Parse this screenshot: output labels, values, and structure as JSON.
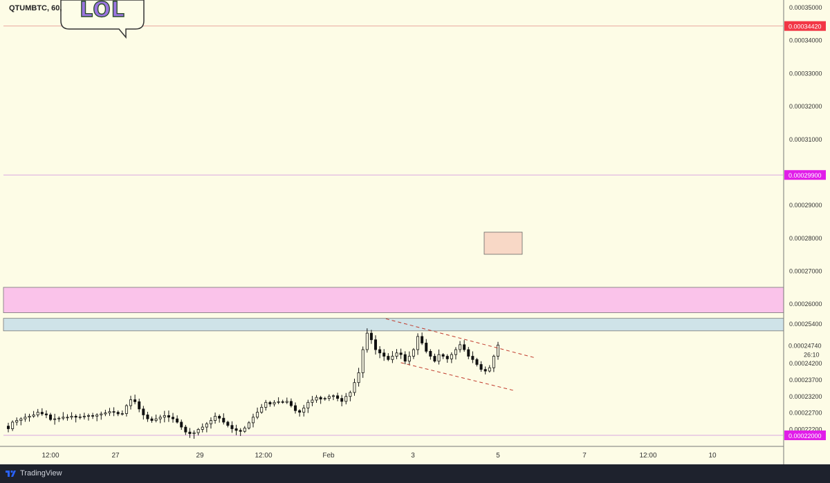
{
  "header": {
    "symbol": "QTUMBTC, 60,"
  },
  "sticker": {
    "text": "LOL"
  },
  "footer": {
    "brand": "TradingView"
  },
  "colors": {
    "background": "#fdfce6",
    "candle": "#111111",
    "pink_zone": "#fac3ea",
    "blue_zone": "#cfe3e8",
    "orange_box": "#f8d8c6",
    "channel": "#c0392b",
    "marker_red": "#f23645",
    "marker_magenta": "#e11de9"
  },
  "chart_data": {
    "type": "candlestick",
    "title": "QTUMBTC, 60,",
    "xlabel": "",
    "ylabel": "",
    "ylim": [
      0.0002185,
      0.0003525
    ],
    "x_ticks": [
      "12:00",
      "27",
      "29",
      "12:00",
      "Feb",
      "3",
      "5",
      "7",
      "12:00",
      "10"
    ],
    "y_ticks": [
      "0.00035000",
      "0.00034000",
      "0.00033000",
      "0.00032000",
      "0.00031000",
      "0.00029000",
      "0.00028000",
      "0.00027000",
      "0.00026000",
      "0.00025400",
      "0.00024200",
      "0.00023700",
      "0.00023200",
      "0.00022700",
      "0.00022200"
    ],
    "price_markers": [
      {
        "label": "0.00034420",
        "value": 0.0003442,
        "color": "#f23645"
      },
      {
        "label": "0.00029900",
        "value": 0.000299,
        "color": "#e11de9"
      },
      {
        "label": "0.00022000",
        "value": 0.00022,
        "color": "#e11de9"
      }
    ],
    "last_price": {
      "label": "0.00024740",
      "value": 0.0002474,
      "countdown": "26:10"
    },
    "zones": [
      {
        "name": "resistance-zone-pink",
        "from": 0.0002572,
        "to": 0.0002649
      },
      {
        "name": "resistance-zone-blue",
        "from": 0.0002517,
        "to": 0.0002555
      }
    ],
    "channel": {
      "upper": [
        [
          0.4649,
          0.00025537
        ],
        [
          0.6435,
          0.0002436
        ]
      ],
      "lower": [
        [
          0.483,
          0.00024205
        ],
        [
          0.62,
          0.00023355
        ]
      ]
    },
    "candles_close": [
      0.000222,
      0.000224,
      0.0002245,
      0.000225,
      0.0002255,
      0.0002258,
      0.0002262,
      0.000227,
      0.0002265,
      0.0002262,
      0.0002248,
      0.000225,
      0.0002252,
      0.0002255,
      0.0002255,
      0.0002258,
      0.0002255,
      0.0002256,
      0.0002258,
      0.000226,
      0.0002258,
      0.0002262,
      0.0002265,
      0.0002268,
      0.0002272,
      0.000227,
      0.0002265,
      0.0002266,
      0.000229,
      0.0002308,
      0.0002302,
      0.000228,
      0.0002262,
      0.000225,
      0.0002245,
      0.000225,
      0.0002255,
      0.000226,
      0.0002255,
      0.000225,
      0.000224,
      0.0002225,
      0.000221,
      0.0002205,
      0.0002208,
      0.0002218,
      0.0002225,
      0.0002235,
      0.0002245,
      0.0002258,
      0.0002252,
      0.000224,
      0.000223,
      0.000222,
      0.0002215,
      0.0002212,
      0.0002222,
      0.0002238,
      0.0002255,
      0.000227,
      0.0002285,
      0.00023,
      0.0002295,
      0.00023,
      0.0002302,
      0.00023,
      0.0002303,
      0.000229,
      0.0002275,
      0.000227,
      0.0002283,
      0.00023,
      0.0002307,
      0.0002315,
      0.000231,
      0.0002312,
      0.0002318,
      0.000232,
      0.0002312,
      0.0002303,
      0.0002318,
      0.000233,
      0.000236,
      0.000239,
      0.000246,
      0.000251,
      0.000249,
      0.000246,
      0.000245,
      0.000244,
      0.000243,
      0.000244,
      0.000245,
      0.0002445,
      0.0002425,
      0.000244,
      0.000246,
      0.00025,
      0.000248,
      0.0002455,
      0.000244,
      0.0002425,
      0.0002445,
      0.000244,
      0.0002432,
      0.0002445,
      0.000246,
      0.0002475,
      0.000246,
      0.000244,
      0.000243,
      0.0002415,
      0.00024,
      0.0002395,
      0.0002405,
      0.000244,
      0.0002474
    ]
  }
}
